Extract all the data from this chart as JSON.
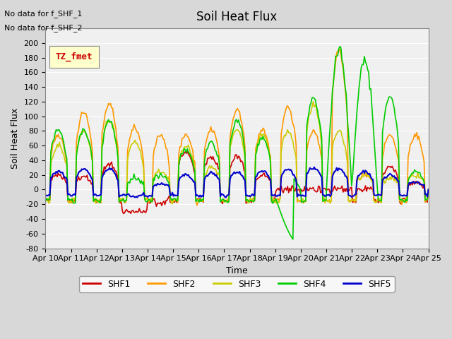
{
  "title": "Soil Heat Flux",
  "xlabel": "Time",
  "ylabel": "Soil Heat Flux",
  "annotation_lines": [
    "No data for f_SHF_1",
    "No data for f_SHF_2"
  ],
  "legend_label": "TZ_fmet",
  "legend_bg": "#ffffcc",
  "legend_edge": "#888888",
  "ylim": [
    -80,
    220
  ],
  "yticks": [
    -80,
    -60,
    -40,
    -20,
    0,
    20,
    40,
    60,
    80,
    100,
    120,
    140,
    160,
    180,
    200
  ],
  "bg_color": "#e8e8e8",
  "plot_bg": "#f0f0f0",
  "series": {
    "SHF1": {
      "color": "#cc0000",
      "lw": 1.2
    },
    "SHF2": {
      "color": "#ff9900",
      "lw": 1.2
    },
    "SHF3": {
      "color": "#cccc00",
      "lw": 1.2
    },
    "SHF4": {
      "color": "#00cc00",
      "lw": 1.2
    },
    "SHF5": {
      "color": "#0000cc",
      "lw": 1.5
    }
  },
  "num_days": 15,
  "start_day": 10
}
